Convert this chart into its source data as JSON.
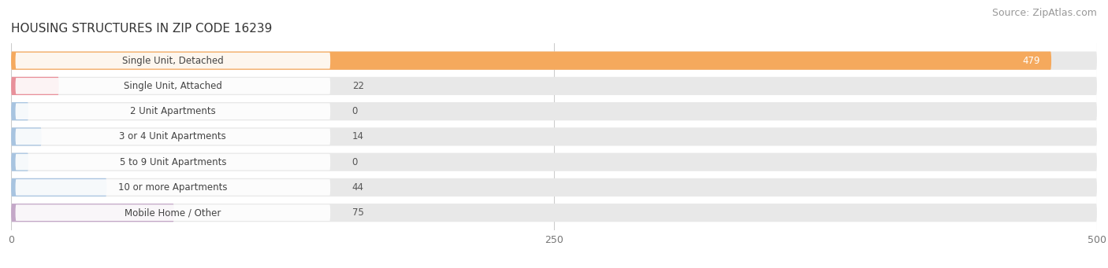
{
  "title": "HOUSING STRUCTURES IN ZIP CODE 16239",
  "source": "Source: ZipAtlas.com",
  "categories": [
    "Single Unit, Detached",
    "Single Unit, Attached",
    "2 Unit Apartments",
    "3 or 4 Unit Apartments",
    "5 to 9 Unit Apartments",
    "10 or more Apartments",
    "Mobile Home / Other"
  ],
  "values": [
    479,
    22,
    0,
    14,
    0,
    44,
    75
  ],
  "bar_colors": [
    "#F5A95D",
    "#E8909A",
    "#A8C4E0",
    "#A8C4E0",
    "#A8C4E0",
    "#A8C4E0",
    "#C4A8C8"
  ],
  "bar_bg_color": "#E8E8E8",
  "xlim": [
    0,
    500
  ],
  "xticks": [
    0,
    250,
    500
  ],
  "title_fontsize": 11,
  "source_fontsize": 9,
  "label_fontsize": 8.5,
  "value_fontsize": 8.5,
  "bar_height": 0.72,
  "background_color": "#ffffff",
  "grid_color": "#cccccc"
}
